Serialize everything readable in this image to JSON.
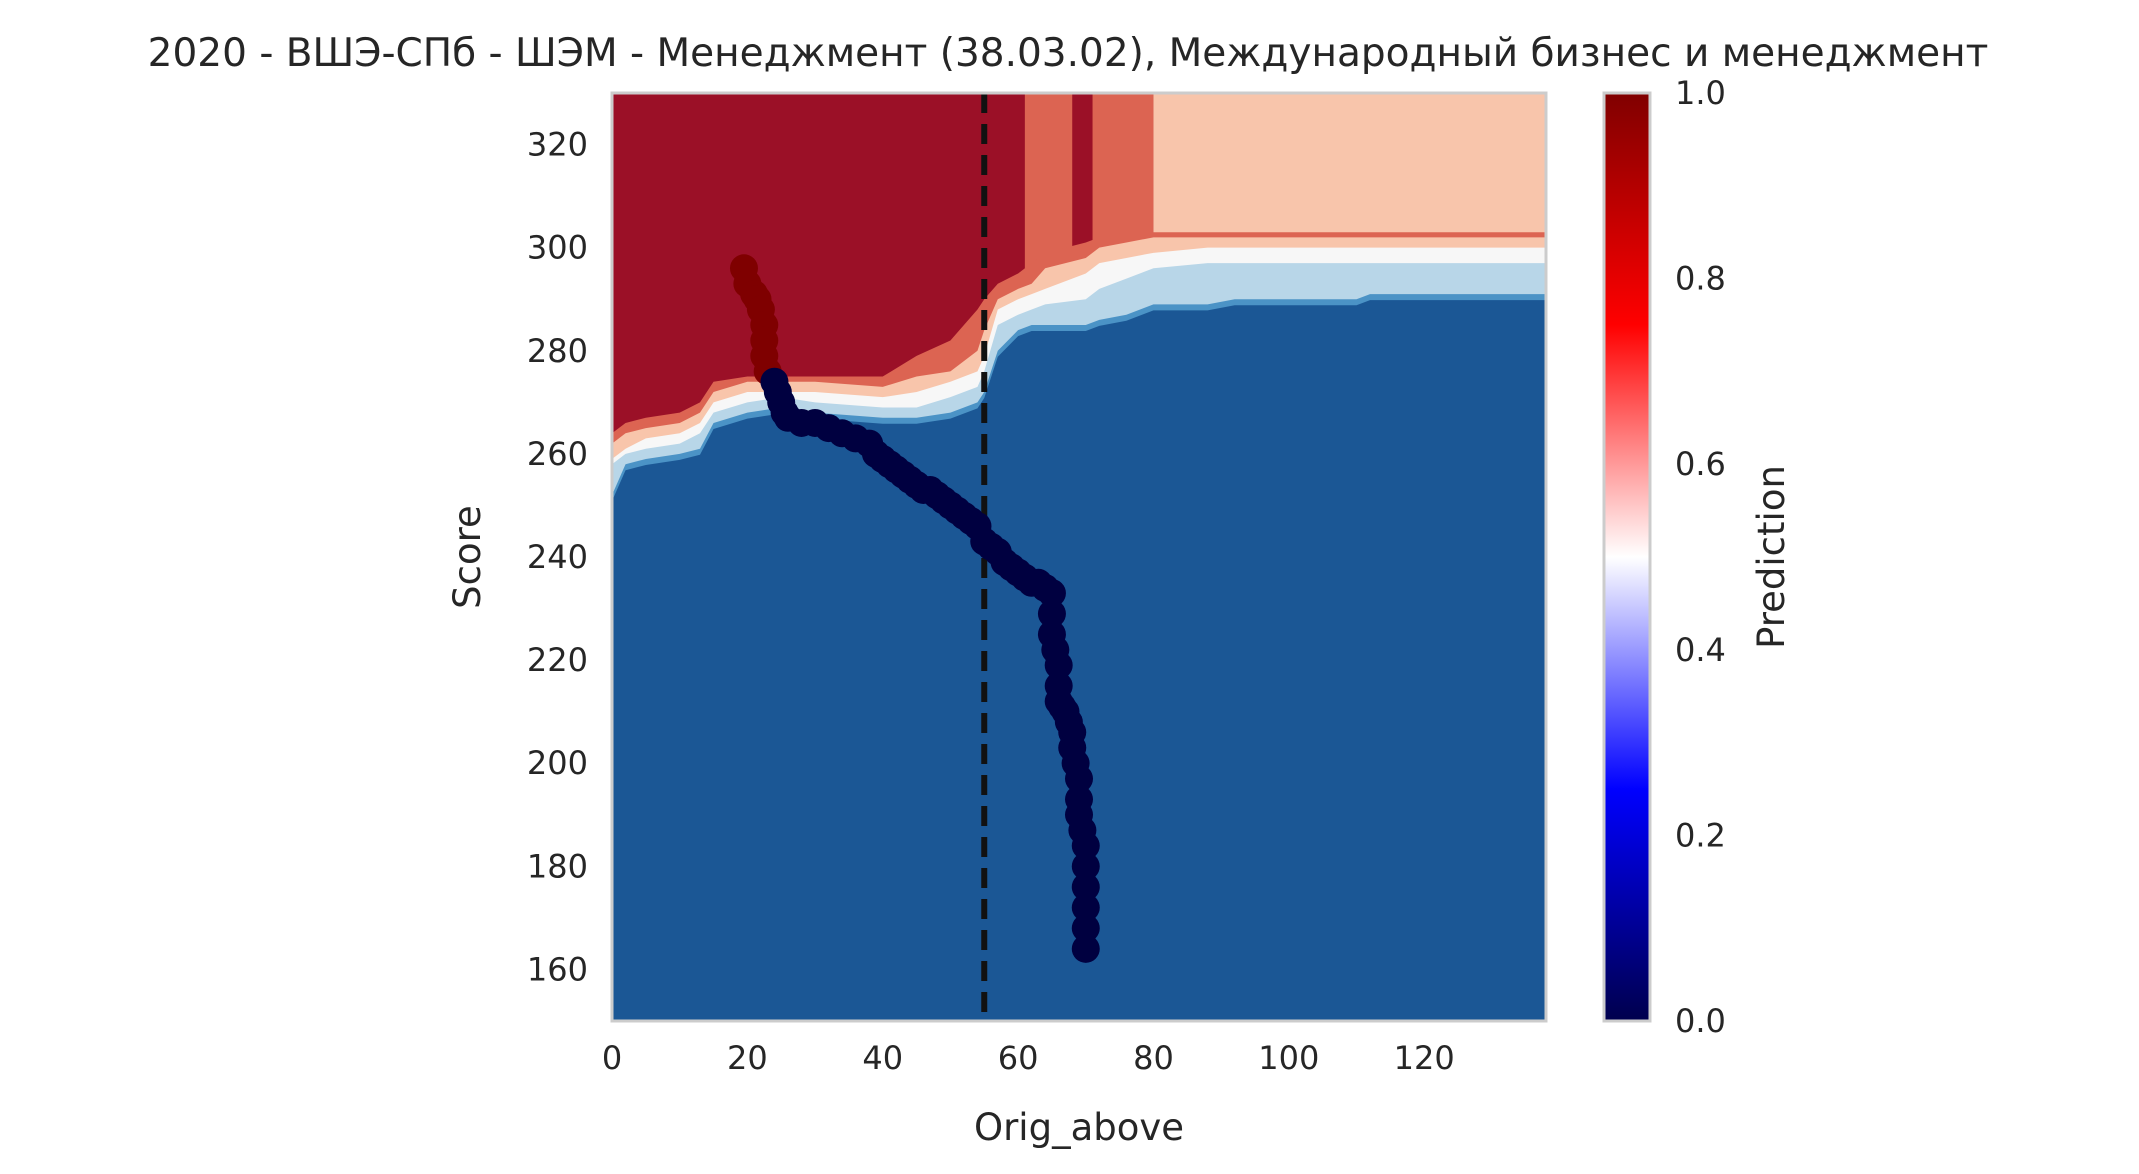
{
  "chart_data": {
    "type": "heatmap",
    "title": "2020 - ВШЭ-СПб - ШЭМ - Менеджмент (38.03.02), Международный бизнес и менеджмент",
    "xlabel": "Orig_above",
    "ylabel": "Score",
    "colorbar_label": "Prediction",
    "xlim": [
      0,
      138
    ],
    "ylim": [
      150,
      330
    ],
    "x_ticks": [
      0,
      20,
      40,
      60,
      80,
      100,
      120
    ],
    "y_ticks": [
      160,
      180,
      200,
      220,
      240,
      260,
      280,
      300,
      320
    ],
    "colorbar_ticks": [
      0.0,
      0.2,
      0.4,
      0.6,
      0.8,
      1.0
    ],
    "colorbar_tick_labels": [
      "0.0",
      "0.2",
      "0.4",
      "0.6",
      "0.8",
      "1.0"
    ],
    "colormap": "seismic",
    "grid": false,
    "reference_line": {
      "x": 55,
      "style": "dashed",
      "color": "#111111"
    },
    "region_colors": {
      "high_prediction": "#9b1027",
      "upper_mid": "#dc6452",
      "mid_high": "#f8c5ab",
      "neutral": "#f7f7f7",
      "mid_low": "#b8d6e8",
      "lower_mid": "#4b93c6",
      "low_prediction": "#1b5795"
    },
    "contour_bands": [
      {
        "name": "lower_mid",
        "value": 0.15,
        "x": [
          0,
          2,
          5,
          10,
          13,
          15,
          20,
          25,
          30,
          40,
          45,
          50,
          54,
          55,
          57,
          60,
          62,
          64,
          70,
          72,
          76,
          80,
          88,
          92,
          100,
          110,
          112,
          120,
          130,
          138
        ],
        "y": [
          252,
          258,
          259,
          260,
          261,
          266,
          268,
          269,
          268,
          267,
          267,
          268,
          270,
          272,
          280,
          284,
          285,
          285,
          285,
          286,
          287,
          289,
          289,
          290,
          290,
          290,
          291,
          291,
          291,
          291
        ]
      },
      {
        "name": "mid_low",
        "value": 0.35,
        "x": [
          0,
          2,
          5,
          10,
          13,
          15,
          20,
          25,
          30,
          40,
          45,
          50,
          54,
          55,
          57,
          60,
          62,
          64,
          70,
          72,
          76,
          80,
          88,
          92,
          100,
          110,
          112,
          120,
          130,
          138
        ],
        "y": [
          258,
          260,
          261,
          262,
          264,
          268,
          270,
          271,
          270,
          269,
          269,
          271,
          273,
          276,
          285,
          287,
          288,
          289,
          290,
          292,
          294,
          296,
          297,
          297,
          297,
          297,
          297,
          297,
          297,
          297
        ]
      },
      {
        "name": "neutral",
        "value": 0.5,
        "x": [
          0,
          2,
          5,
          10,
          13,
          15,
          20,
          25,
          30,
          40,
          45,
          50,
          54,
          55,
          57,
          60,
          62,
          64,
          70,
          72,
          76,
          80,
          88,
          92,
          100,
          110,
          112,
          120,
          130,
          138
        ],
        "y": [
          259,
          261,
          263,
          264,
          266,
          270,
          272,
          272,
          272,
          271,
          272,
          274,
          276,
          279,
          288,
          290,
          291,
          292,
          295,
          297,
          298,
          299,
          300,
          300,
          300,
          300,
          300,
          300,
          300,
          300
        ]
      },
      {
        "name": "mid_high",
        "value": 0.65,
        "x": [
          0,
          2,
          5,
          10,
          13,
          15,
          20,
          25,
          30,
          40,
          45,
          50,
          54,
          55,
          57,
          60,
          62,
          64,
          70,
          72,
          76,
          80,
          88,
          92,
          100,
          110,
          112,
          120,
          130,
          138
        ],
        "y": [
          262,
          264,
          265,
          266,
          268,
          272,
          274,
          274,
          274,
          273,
          275,
          276,
          280,
          284,
          290,
          292,
          293,
          296,
          298,
          300,
          301,
          302,
          302,
          302,
          302,
          302,
          302,
          302,
          302,
          302
        ]
      },
      {
        "name": "upper_mid",
        "value": 0.85,
        "x": [
          0,
          2,
          5,
          10,
          13,
          15,
          20,
          25,
          30,
          40,
          45,
          50,
          54,
          55,
          57,
          60,
          62,
          64,
          70,
          72,
          76,
          80,
          88,
          92,
          100,
          110,
          112,
          120,
          130,
          138
        ],
        "y": [
          264,
          266,
          267,
          268,
          270,
          274,
          275,
          275,
          275,
          275,
          279,
          282,
          288,
          290,
          293,
          295,
          297,
          299,
          301,
          302,
          303,
          303,
          303,
          303,
          303,
          303,
          303,
          303,
          303,
          303
        ]
      }
    ],
    "upper_strips": [
      {
        "x_start": 61,
        "x_end": 68,
        "color": "upper_mid"
      },
      {
        "x_start": 71,
        "x_end": 80,
        "color": "upper_mid"
      },
      {
        "x_start": 80,
        "x_end": 138,
        "color": "mid_high"
      }
    ],
    "trajectory": {
      "x": [
        19.5,
        20,
        21,
        21.5,
        22,
        22.5,
        22.5,
        22.5,
        23,
        24,
        24.5,
        25,
        25.5,
        26,
        28,
        30,
        32,
        34,
        36,
        38,
        39,
        40,
        41,
        42,
        43,
        44,
        45,
        46,
        47,
        48,
        49,
        50,
        51,
        52,
        53,
        54,
        55,
        56,
        57,
        58,
        59,
        60,
        61,
        62,
        63,
        64,
        65,
        65,
        65,
        65.5,
        66,
        66,
        66,
        66.5,
        67,
        67.5,
        68,
        68,
        68.5,
        69,
        69,
        69,
        69.5,
        70,
        70,
        70,
        70,
        70,
        70
      ],
      "y": [
        296,
        293,
        291,
        290,
        288,
        285,
        282,
        279,
        276,
        274,
        272,
        270,
        268,
        267,
        266,
        266,
        265,
        264,
        263,
        262,
        260,
        259,
        258,
        257,
        256,
        255,
        254,
        253,
        253,
        252,
        251,
        250,
        249,
        248,
        247,
        246,
        243,
        242,
        241,
        239,
        238,
        237,
        236,
        235,
        235,
        234,
        233,
        229,
        225,
        222,
        219,
        215,
        212,
        211,
        210,
        208,
        206,
        203,
        200,
        197,
        193,
        190,
        187,
        184,
        180,
        176,
        172,
        168,
        164
      ],
      "color_high": "#7f0000",
      "color_low": "#000040",
      "color_split_y": 274
    }
  }
}
